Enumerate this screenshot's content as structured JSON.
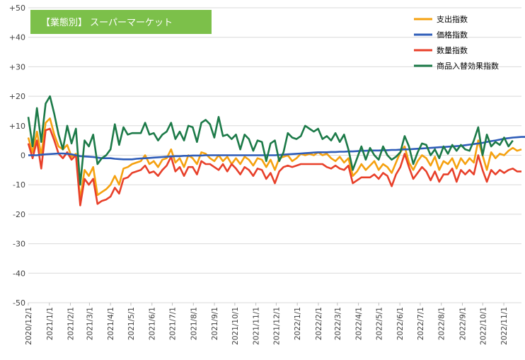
{
  "chart_data": {
    "type": "line",
    "badge": {
      "text": "【業態別】 スーパーマーケット",
      "color": "#7cc04a"
    },
    "y_ticks": [
      "+50",
      "+40",
      "+30",
      "+20",
      "+10",
      "0",
      "-10",
      "-20",
      "-30",
      "-40",
      "-50"
    ],
    "ylim": [
      -50,
      50
    ],
    "grid": true,
    "legend_position": "top-right",
    "x_tick_labels": [
      "2020/12/1",
      "2021/1/1",
      "2021/2/1",
      "2021/3/1",
      "2021/4/1",
      "2021/5/1",
      "2021/6/1",
      "2021/7/1",
      "2021/8/1",
      "2021/9/1",
      "2021/10/1",
      "2021/11/1",
      "2021/12/1",
      "2022/1/1",
      "2022/2/1",
      "2022/3/1",
      "2022/4/1",
      "2022/5/1",
      "2022/6/1",
      "2022/7/1",
      "2022/8/1",
      "2022/9/1",
      "2022/10/1",
      "2022/11/1"
    ],
    "x_start": "2020/12/1",
    "x_step_days": 7,
    "x_end_date": "2022/11/27",
    "series": [
      {
        "name": "支出指数",
        "color": "#f5a10f",
        "values": [
          6,
          1,
          8,
          0,
          11,
          12.5,
          7,
          3,
          2,
          3.5,
          -0.5,
          0.5,
          -15,
          -5,
          -7,
          -4,
          -13.5,
          -12.5,
          -11.5,
          -10,
          -7,
          -10,
          -4.5,
          -4,
          -3,
          -2.5,
          -2,
          0,
          -3,
          -2,
          -4,
          -1.5,
          -1,
          2,
          -2.5,
          -1,
          -4,
          0,
          -1,
          -3,
          1,
          0.5,
          -1,
          -2,
          0,
          -2,
          -0.5,
          -3,
          -1,
          -3,
          -0.5,
          -1.5,
          -3.5,
          -1,
          -1.5,
          -4,
          -1.5,
          -5,
          -1,
          -0.5,
          0,
          -2,
          -1,
          0.5,
          0,
          0.5,
          0,
          1,
          0,
          0.5,
          -1,
          -2,
          -0.5,
          -2.5,
          -1,
          -7,
          -5.5,
          -3,
          -5,
          -3.5,
          -2,
          -5,
          -3,
          -4,
          -6,
          -2.5,
          1,
          3,
          -2.5,
          -5,
          -2,
          0,
          -1,
          -3.5,
          -0.5,
          -5,
          -2,
          -3,
          -1,
          -4.5,
          -1,
          -3,
          -1,
          -2.5,
          5,
          0,
          -5,
          1,
          -1,
          0.5,
          0,
          1.5,
          2.5,
          1.5,
          2
        ]
      },
      {
        "name": "価格指数",
        "color": "#2e5cb8",
        "values": [
          0,
          0,
          0,
          0.2,
          0.3,
          0.4,
          0.5,
          0.6,
          0.6,
          0.5,
          0.3,
          0,
          -0.3,
          -0.4,
          -0.5,
          -0.6,
          -0.8,
          -1,
          -1,
          -1,
          -1.2,
          -1.3,
          -1.4,
          -1.4,
          -1.4,
          -1.2,
          -1.1,
          -1,
          -0.9,
          -0.8,
          -0.7,
          -0.6,
          -0.5,
          -0.4,
          -0.3,
          -0.3,
          -0.2,
          -0.2,
          -0.1,
          -0.1,
          -0.1,
          0,
          0,
          0,
          0,
          0,
          0,
          0,
          0,
          0,
          0,
          0,
          0,
          0,
          0,
          0,
          0,
          0,
          0.1,
          0.2,
          0.3,
          0.4,
          0.5,
          0.6,
          0.7,
          0.8,
          0.9,
          1,
          1,
          1,
          1.1,
          1.1,
          1.2,
          1.2,
          1.3,
          1.3,
          1.4,
          1.5,
          1.5,
          1.6,
          1.6,
          1.6,
          1.7,
          1.7,
          1.8,
          1.8,
          1.9,
          2,
          2,
          2.1,
          2.2,
          2.3,
          2.4,
          2.5,
          2.6,
          2.7,
          2.8,
          2.9,
          3,
          3.1,
          3.2,
          3.4,
          3.6,
          3.8,
          4,
          4.2,
          4.5,
          4.8,
          5,
          5.3,
          5.6,
          5.8,
          6,
          6.1,
          6.2,
          6.2
        ]
      },
      {
        "name": "数量指数",
        "color": "#e8402a",
        "values": [
          4,
          -1,
          5,
          -4.5,
          8.5,
          9,
          5,
          0.5,
          -1,
          1,
          -1.5,
          0,
          -17,
          -8,
          -10,
          -8,
          -16.5,
          -15.5,
          -15,
          -14,
          -11,
          -13,
          -8,
          -7.5,
          -6,
          -5.5,
          -5,
          -3.5,
          -6,
          -5.5,
          -7,
          -5,
          -3.5,
          -0.5,
          -5.5,
          -4,
          -7,
          -4,
          -4,
          -6.5,
          -2,
          -3,
          -3,
          -4,
          -5,
          -3,
          -5.5,
          -3,
          -4.5,
          -6.5,
          -4,
          -5,
          -7,
          -4.5,
          -5,
          -8,
          -6,
          -9.5,
          -5.5,
          -4,
          -3.5,
          -4,
          -3.5,
          -3,
          -3,
          -3,
          -3,
          -3,
          -3,
          -4,
          -4.5,
          -3.5,
          -4.5,
          -5,
          -3.5,
          -9.5,
          -8.5,
          -7.5,
          -7.5,
          -7.5,
          -6.5,
          -8,
          -6,
          -7,
          -10.5,
          -6.5,
          -4,
          0.5,
          -4,
          -8,
          -6,
          -4,
          -5.5,
          -8.5,
          -5.5,
          -9,
          -6.5,
          -6.5,
          -4.5,
          -9,
          -5,
          -6.5,
          -5,
          -6.5,
          0,
          -5,
          -9,
          -5,
          -6.5,
          -5,
          -6,
          -5,
          -4.5,
          -5.5,
          -5.5
        ]
      },
      {
        "name": "商品入替効果指数",
        "color": "#1c7a48",
        "values": [
          13,
          3,
          16,
          4.5,
          17.5,
          20,
          14,
          7,
          2,
          10,
          4,
          9,
          -10,
          5,
          3,
          7,
          -3,
          -1,
          0,
          2,
          10.5,
          3.5,
          9.5,
          7,
          7.5,
          7.5,
          7.5,
          11,
          7,
          7.5,
          5,
          7,
          8,
          11,
          5.5,
          8,
          5,
          10,
          9.5,
          4.5,
          11,
          12,
          10.5,
          6,
          13,
          6.5,
          7,
          5.5,
          7,
          2,
          7,
          5.5,
          1.5,
          5,
          4.5,
          -2,
          4,
          5,
          -2,
          1,
          7.5,
          6,
          5.5,
          6.5,
          10,
          9,
          8,
          9,
          5.5,
          6.5,
          5,
          7.5,
          4.5,
          7,
          2,
          -5,
          -1,
          3,
          -1.5,
          2.5,
          0,
          -1.5,
          3,
          0,
          -1.5,
          -0.5,
          1,
          6.5,
          3,
          -3,
          1,
          4,
          3.5,
          0,
          2,
          -1,
          3,
          0.5,
          3.5,
          1.5,
          3.5,
          2,
          1.5,
          5,
          9.5,
          0,
          7,
          3,
          4.5,
          3.5,
          6,
          3,
          5
        ]
      }
    ]
  }
}
